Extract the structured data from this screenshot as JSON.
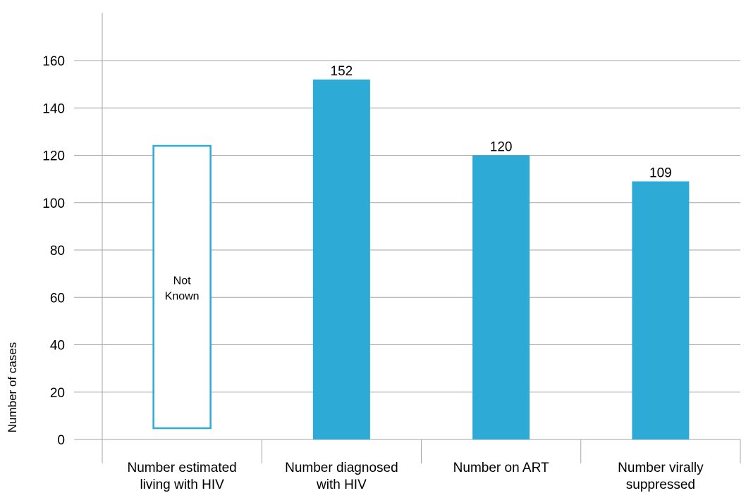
{
  "chart_data": {
    "type": "bar",
    "categories": [
      [
        "Number estimated",
        "living with HIV"
      ],
      [
        "Number diagnosed",
        "with HIV"
      ],
      [
        "Number on ART"
      ],
      [
        "Number virally",
        "suppressed"
      ]
    ],
    "values": [
      null,
      152,
      120,
      109
    ],
    "data_labels": [
      "",
      "152",
      "120",
      "109"
    ],
    "placeholder": {
      "category_index": 0,
      "value": 124,
      "label": [
        "Not",
        "Known"
      ]
    },
    "ylabel": "Number of cases",
    "xlabel": "",
    "title": "",
    "ylim": [
      0,
      160
    ],
    "yticks": [
      0,
      20,
      40,
      60,
      80,
      100,
      120,
      140,
      160
    ],
    "grid": true,
    "bar_color": "#2eaad6",
    "placeholder_color": "#2eaad6"
  }
}
